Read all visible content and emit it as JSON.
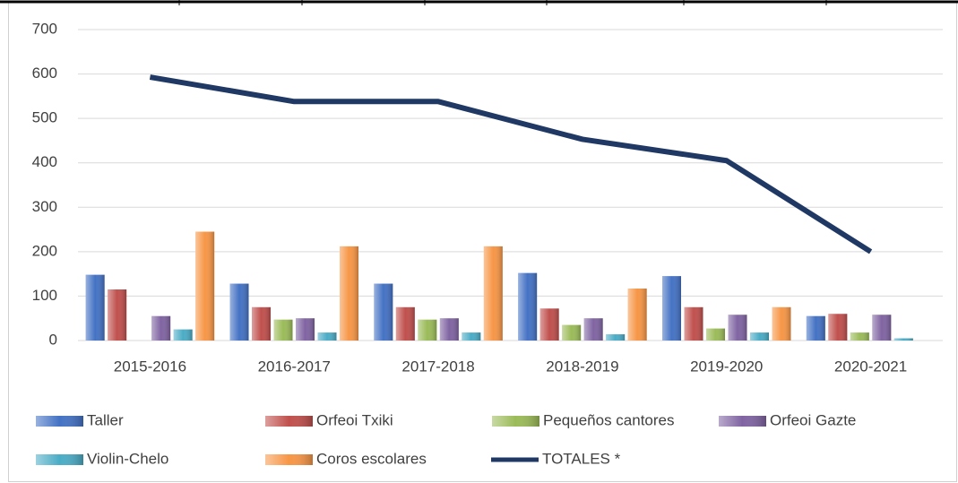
{
  "chart_data": {
    "type": "bar",
    "categories": [
      "2015-2016",
      "2016-2017",
      "2017-2018",
      "2018-2019",
      "2019-2020",
      "2020-2021"
    ],
    "series": [
      {
        "name": "Taller",
        "color": "#4472c4",
        "values": [
          148,
          128,
          128,
          152,
          145,
          55
        ]
      },
      {
        "name": "Orfeoi Txiki",
        "color": "#c0504d",
        "values": [
          115,
          75,
          75,
          72,
          75,
          60
        ]
      },
      {
        "name": "Pequeños cantores",
        "color": "#9bbb59",
        "values": [
          0,
          47,
          47,
          35,
          27,
          18
        ]
      },
      {
        "name": "Orfeoi Gazte",
        "color": "#8064a2",
        "values": [
          55,
          50,
          50,
          50,
          58,
          58
        ]
      },
      {
        "name": "Violin-Chelo",
        "color": "#4bacc6",
        "values": [
          25,
          18,
          18,
          14,
          18,
          5
        ]
      },
      {
        "name": "Coros escolares",
        "color": "#f79646",
        "values": [
          245,
          212,
          212,
          117,
          75,
          0
        ]
      },
      {
        "name": "TOTALES *",
        "color": "#1f3864",
        "type": "line",
        "values": [
          593,
          538,
          538,
          453,
          405,
          200
        ]
      }
    ],
    "ylim": [
      0,
      700
    ],
    "yticks": [
      0,
      100,
      200,
      300,
      400,
      500,
      600,
      700
    ],
    "grid": true,
    "legend": "bottom"
  }
}
